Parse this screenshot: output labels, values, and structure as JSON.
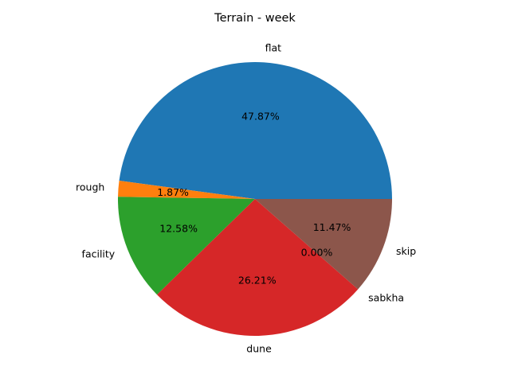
{
  "chart_data": {
    "type": "pie",
    "title": "Terrain - week",
    "categories": [
      "flat",
      "rough",
      "facility",
      "dune",
      "sabkha",
      "skip"
    ],
    "values": [
      47.87,
      1.87,
      12.58,
      26.21,
      0.0,
      11.47
    ],
    "value_labels": [
      "47.87%",
      "1.87%",
      "12.58%",
      "26.21%",
      "0.00%",
      "11.47%"
    ],
    "colors": [
      "#1f77b4",
      "#ff7f0e",
      "#2ca02c",
      "#d62728",
      "#9467bd",
      "#8c564b"
    ],
    "start_angle_deg": 0,
    "direction": "counterclockwise",
    "legend": "none"
  }
}
